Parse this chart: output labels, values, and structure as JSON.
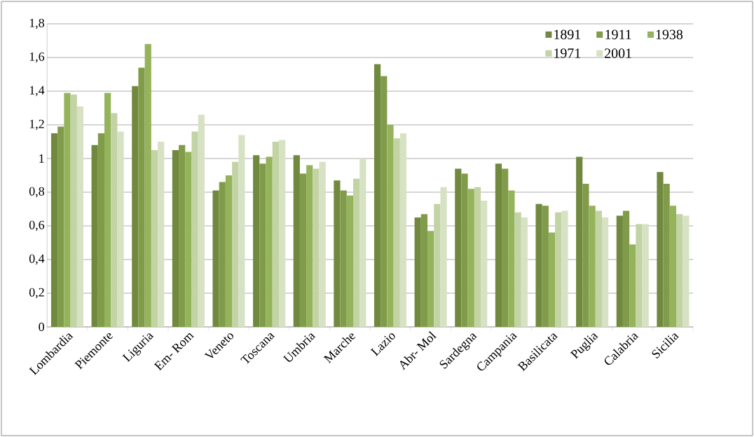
{
  "chart_data": {
    "type": "bar",
    "categories": [
      "Lombardia",
      "Piemonte",
      "Liguria",
      "Em- Rom",
      "Veneto",
      "Toscana",
      "Umbria",
      "Marche",
      "Lazio",
      "Abr- Mol",
      "Sardegna",
      "Campania",
      "Basilicata",
      "Puglia",
      "Calabria",
      "Sicilia"
    ],
    "series": [
      {
        "name": "1891",
        "color": "#71893f",
        "values": [
          1.15,
          1.08,
          1.43,
          1.05,
          0.81,
          1.02,
          1.02,
          0.87,
          1.56,
          0.65,
          0.94,
          0.97,
          0.73,
          1.01,
          0.66,
          0.92
        ]
      },
      {
        "name": "1911",
        "color": "#809c4a",
        "values": [
          1.19,
          1.15,
          1.54,
          1.08,
          0.86,
          0.97,
          0.91,
          0.81,
          1.49,
          0.67,
          0.91,
          0.94,
          0.72,
          0.85,
          0.69,
          0.85
        ]
      },
      {
        "name": "1938",
        "color": "#94b35a",
        "values": [
          1.39,
          1.39,
          1.68,
          1.04,
          0.9,
          1.01,
          0.96,
          0.78,
          1.2,
          0.57,
          0.82,
          0.81,
          0.56,
          0.72,
          0.49,
          0.72
        ]
      },
      {
        "name": "1971",
        "color": "#c2d3a4",
        "values": [
          1.38,
          1.27,
          1.05,
          1.16,
          0.98,
          1.1,
          0.94,
          0.88,
          1.12,
          0.73,
          0.83,
          0.68,
          0.68,
          0.69,
          0.61,
          0.67
        ]
      },
      {
        "name": "2001",
        "color": "#d7e2c5",
        "values": [
          1.31,
          1.16,
          1.1,
          1.26,
          1.14,
          1.11,
          0.98,
          1.0,
          1.15,
          0.83,
          0.75,
          0.65,
          0.69,
          0.65,
          0.61,
          0.66
        ]
      }
    ],
    "ylim": [
      0,
      1.8
    ],
    "yticks": [
      0,
      {
        "value": 0.2,
        "label": "0,2"
      },
      {
        "value": 0.4,
        "label": "0,4"
      },
      {
        "value": 0.6,
        "label": "0,6"
      },
      {
        "value": 0.8,
        "label": "0,8"
      },
      1,
      {
        "value": 1.2,
        "label": "1,2"
      },
      {
        "value": 1.4,
        "label": "1,4"
      },
      {
        "value": 1.6,
        "label": "1,6"
      },
      {
        "value": 1.8,
        "label": "1,8"
      }
    ],
    "grid": "y",
    "legend": "top right"
  }
}
